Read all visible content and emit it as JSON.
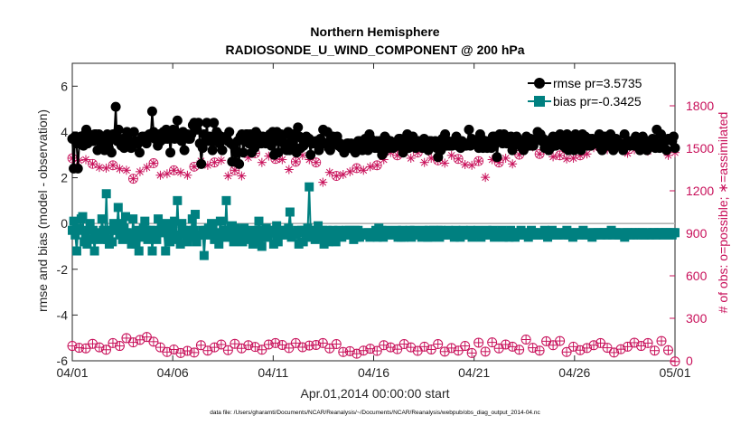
{
  "chart_data": {
    "type": "line",
    "title": "Northern Hemisphere",
    "subtitle": "RADIOSONDE_U_WIND_COMPONENT @ 200 hPa",
    "xlabel": "Apr.01,2014 00:00:00 start",
    "ylabel": "rmse and bias (model - observation)",
    "ylabel_right": "# of obs: o=possible; ∗=assimilated",
    "footnote": "data file: /Users/gharamti/Documents/NCAR/Reanalysis/~/Documents/NCAR/Reanalysis/webpub/obs_diag_output_2014-04.nc",
    "xlim": [
      0,
      30
    ],
    "ylim": [
      -6,
      7
    ],
    "ylim_right": [
      0,
      2100
    ],
    "x_ticks": [
      0,
      5,
      10,
      15,
      20,
      25,
      30
    ],
    "x_tick_labels": [
      "04/01",
      "04/06",
      "04/11",
      "04/16",
      "04/21",
      "04/26",
      "05/01"
    ],
    "y_ticks": [
      -6,
      -4,
      -2,
      0,
      2,
      4,
      6
    ],
    "y_ticks_right": [
      0,
      300,
      600,
      900,
      1200,
      1500,
      1800
    ],
    "zero_line": 0,
    "colors": {
      "rmse": "#000000",
      "bias": "#008080",
      "obs": "#c8105a",
      "zero": "#b3b3b3"
    },
    "legend": {
      "position": "top-right",
      "entries": [
        "rmse pr=3.5735",
        "bias pr=-0.3425"
      ]
    },
    "series": [
      {
        "name": "rmse pr=3.5735",
        "axis": "left",
        "values": [
          3.7,
          2.4,
          3.8,
          3.5,
          2.4,
          3.5,
          3.8,
          3.6,
          3.4,
          3.9,
          4.1,
          3.5,
          3.9,
          3.8,
          3.8,
          3.6,
          3.9,
          3.9,
          3.2,
          3.9,
          3.7,
          3.7,
          3.5,
          3.2,
          3.5,
          3.9,
          3.3,
          3.7,
          3.1,
          3.9,
          3.9,
          5.1,
          3.6,
          4.1,
          3.7,
          3.4,
          3.7,
          3.3,
          3.6,
          4.0,
          3.9,
          3.6,
          3.3,
          3.4,
          4.0,
          3.5,
          3.6,
          3.5,
          3.1,
          3.6,
          3.8,
          3.7,
          3.8,
          3.5,
          3.7,
          3.9,
          3.9,
          4.9,
          4.0,
          3.7,
          3.9,
          3.4,
          3.9,
          3.6,
          3.7,
          4.0,
          3.7,
          4.1,
          3.7,
          3.9,
          3.1,
          3.8,
          4.1,
          3.7,
          4.0,
          4.5,
          3.7,
          3.9,
          3.6,
          4.0,
          3.2,
          3.9,
          3.9,
          3.7,
          3.7,
          3.9,
          4.3,
          4.4,
          4.3,
          4.1,
          4.4,
          3.5,
          2.6,
          3.3,
          3.9,
          3.6,
          4.4,
          3.6,
          3.8,
          3.6,
          3.2,
          4.4,
          3.6,
          4.0,
          3.9,
          3.5,
          3.8,
          3.2,
          3.7,
          3.7,
          3.8,
          3.6,
          4.0,
          3.5,
          2.7,
          3.4,
          2.7,
          3.1,
          3.6,
          2.6,
          3.8,
          3.9,
          3.1,
          3.6,
          3.9,
          3.9,
          3.5,
          3.9,
          3.1,
          3.6,
          3.3,
          4.0,
          3.9,
          3.6,
          3.5,
          3.5,
          3.8,
          3.6,
          3.5,
          3.7,
          3.6,
          3.9,
          3.4,
          4.0,
          3.0,
          3.6,
          4.0,
          3.1,
          3.7,
          3.9,
          3.8,
          3.5,
          3.3,
          3.2,
          4.0,
          3.2,
          3.4,
          3.9,
          3.7,
          3.9,
          3.1,
          4.2,
          3.8,
          3.3,
          3.7,
          3.4,
          3.5,
          3.8,
          3.6,
          3.7,
          3.0,
          3.5,
          3.5,
          3.5,
          3.6,
          3.5,
          3.2,
          3.7,
          3.5,
          4.1,
          3.5,
          3.5,
          4.0,
          3.3,
          3.2,
          3.6,
          3.8,
          3.5,
          3.5,
          3.8,
          3.4,
          3.5,
          3.3,
          3.3,
          3.1,
          3.4,
          3.5,
          3.5,
          3.3,
          3.5,
          3.3,
          3.2,
          3.1,
          3.5,
          3.6,
          3.6,
          3.4,
          3.2,
          3.6,
          3.7,
          3.6,
          3.2,
          3.9,
          3.7,
          3.6,
          3.4,
          3.3,
          3.6,
          3.3,
          3.6,
          3.4,
          3.0,
          3.1,
          3.8,
          3.7,
          3.6,
          3.3,
          3.6,
          3.4,
          3.3,
          3.5,
          3.4,
          3.4,
          3.7,
          3.7,
          3.5,
          3.1,
          3.5,
          3.6,
          3.9,
          3.3,
          3.4,
          3.7,
          3.8,
          3.6,
          3.3,
          3.4,
          3.6,
          3.5,
          3.5,
          3.3,
          3.7,
          3.5,
          3.5,
          3.2,
          3.6,
          3.6,
          3.4,
          3.5,
          3.6,
          3.3,
          2.9,
          3.2,
          3.2,
          3.7,
          3.4,
          3.9,
          3.4,
          3.6,
          3.4,
          3.4,
          3.4,
          3.6,
          3.6,
          3.8,
          3.4,
          3.4,
          3.3,
          3.6,
          3.4,
          3.4,
          3.4,
          3.5,
          4.1,
          3.4,
          3.7,
          3.5,
          3.6,
          3.5,
          3.6,
          3.3,
          3.9,
          3.7,
          3.3,
          3.4,
          3.6,
          3.3,
          3.5,
          3.4,
          3.3,
          3.8,
          3.8,
          3.5,
          2.9,
          3.6,
          3.9,
          3.6,
          3.5,
          3.9,
          3.6,
          3.5,
          3.5,
          3.6,
          3.8,
          3.2,
          3.4,
          3.5,
          3.8,
          3.5,
          3.6,
          3.6,
          3.3,
          3.2,
          3.6,
          3.8,
          3.7,
          3.4,
          3.7,
          3.4,
          3.4,
          3.6,
          3.7,
          4.0,
          3.9,
          3.9,
          3.6,
          3.7,
          3.3,
          3.6,
          3.4,
          3.2,
          3.3,
          3.7,
          3.8,
          3.4,
          3.4,
          3.6,
          3.5,
          3.9,
          3.6,
          3.4,
          3.5,
          3.3,
          3.9,
          3.2,
          3.8,
          3.8,
          3.4,
          3.2,
          3.9,
          3.7,
          3.5,
          3.4,
          3.2,
          3.9,
          3.6,
          3.8,
          3.7,
          3.4,
          3.7,
          3.4,
          3.7,
          3.5,
          3.5,
          3.5,
          3.5,
          3.9,
          3.3,
          3.2,
          3.6,
          3.8,
          3.7,
          3.4,
          3.4,
          3.9,
          3.7,
          3.2,
          3.4,
          3.7,
          3.6,
          3.4,
          3.5,
          3.4,
          3.2,
          3.9,
          3.4,
          3.5,
          3.6,
          3.4,
          3.6,
          3.5,
          3.4,
          3.8,
          3.7,
          3.6,
          3.2,
          3.5,
          3.8,
          3.6,
          3.4,
          3.2,
          3.6,
          3.5,
          3.4,
          3.7,
          3.5,
          3.3,
          4.1,
          3.5,
          3.3,
          3.9,
          3.5,
          3.5,
          3.6,
          3.2,
          3.7,
          3.7,
          3.7,
          3.6,
          3.8,
          3.3
        ]
      },
      {
        "name": "bias pr=-0.3425",
        "axis": "left",
        "values": [
          -0.3,
          0.1,
          -0.5,
          -1.2,
          -0.2,
          -0.3,
          0.2,
          0.3,
          -0.8,
          -0.5,
          -0.9,
          -0.3,
          0.0,
          -0.7,
          -0.3,
          -1.2,
          -0.4,
          -0.6,
          -0.5,
          -0.7,
          0.2,
          -0.3,
          -0.6,
          1.3,
          -0.7,
          -0.9,
          -0.3,
          -0.8,
          0.0,
          -0.1,
          -0.3,
          0.7,
          -0.5,
          0.0,
          -0.7,
          -0.2,
          0.3,
          -0.4,
          -0.5,
          -0.6,
          -0.9,
          0.2,
          -0.5,
          -0.9,
          -0.3,
          -1.2,
          -0.5,
          -0.6,
          -0.2,
          0.1,
          -0.3,
          -0.7,
          -0.4,
          -0.3,
          -1.2,
          -0.3,
          -0.4,
          -0.7,
          0.2,
          -0.4,
          -0.3,
          -0.1,
          -0.4,
          -1.2,
          0.0,
          -0.6,
          -0.8,
          -0.2,
          -0.4,
          0.1,
          -0.7,
          1.0,
          -0.5,
          -0.9,
          0.0,
          -0.3,
          -0.5,
          -0.6,
          -0.8,
          -0.3,
          -0.6,
          0.2,
          -0.3,
          0.4,
          -0.8,
          -0.5,
          -0.5,
          -0.5,
          -0.3,
          -1.4,
          -0.3,
          -0.5,
          -0.2,
          -0.5,
          0.0,
          -0.2,
          -0.7,
          -0.5,
          -0.4,
          -0.9,
          0.1,
          -0.5,
          -0.3,
          -0.6,
          1.0,
          -0.6,
          -0.5,
          -0.3,
          -0.1,
          -0.8,
          -0.2,
          -0.7,
          -0.4,
          -0.3,
          -0.4,
          -0.8,
          -0.2,
          -0.3,
          -0.5,
          -0.7,
          -0.5,
          -0.4,
          -0.9,
          -0.3,
          -0.8,
          -0.6,
          0.1,
          -0.3,
          -1.0,
          -0.4,
          -0.6,
          -0.2,
          -0.6,
          -0.4,
          -0.4,
          -0.3,
          -0.9,
          -0.3,
          -0.1,
          -0.8,
          -0.5,
          -0.3,
          -0.3,
          -0.5,
          -0.5,
          -0.4,
          -0.2,
          0.5,
          -0.6,
          -0.4,
          -0.5,
          -0.5,
          -0.3,
          -0.9,
          -0.4,
          -0.3,
          -0.8,
          -0.3,
          -0.6,
          -0.2,
          1.6,
          -0.5,
          -0.6,
          -0.4,
          -0.7,
          -0.3,
          -0.1,
          -0.6,
          -0.4,
          -0.3,
          -0.9,
          -0.5,
          -0.3,
          -0.8,
          -0.6,
          -0.7,
          -0.3,
          -0.5,
          -0.8,
          -0.5,
          -0.3,
          -0.4,
          -0.6,
          -0.5,
          -0.5,
          -0.3,
          -0.5,
          -0.3,
          -0.5,
          -0.4,
          -0.7,
          -0.3,
          -0.6,
          -0.3,
          -0.6,
          -0.5,
          -0.4,
          -0.5,
          -0.5,
          -0.5,
          -0.4,
          -0.6,
          -0.4,
          -0.5,
          -0.5,
          -0.3,
          -0.6,
          -0.2,
          -0.4,
          -0.3,
          -0.6,
          -0.5,
          -0.4,
          -0.3,
          -0.4,
          -0.5,
          -0.4,
          -0.5,
          -0.4,
          -0.3,
          -0.6,
          -0.4,
          -0.6,
          -0.3,
          -0.6,
          -0.5,
          -0.5,
          -0.4,
          -0.3,
          -0.6,
          -0.4,
          -0.3,
          -0.5,
          -0.5,
          -0.5,
          -0.4,
          -0.6,
          -0.3,
          -0.5,
          -0.4,
          -0.6,
          -0.3,
          -0.6,
          -0.5,
          -0.3,
          -0.5,
          -0.4,
          -0.3,
          -0.6,
          -0.3,
          -0.5,
          -0.5,
          -0.5,
          -0.4,
          -0.3,
          -0.4,
          -0.5,
          -0.4,
          -0.6,
          -0.3,
          -0.5,
          -0.4,
          -0.6,
          -0.5,
          -0.3,
          -0.5,
          -0.5,
          -0.4,
          -0.5,
          -0.3,
          -0.6,
          -0.4,
          -0.4,
          -0.5,
          -0.3,
          -0.4,
          -0.6,
          -0.5,
          -0.5,
          -0.4,
          -0.3,
          -0.5,
          -0.5,
          -0.4,
          -0.3,
          -0.6,
          -0.4,
          -0.5,
          -0.5,
          -0.4,
          -0.3,
          -0.6,
          -0.4,
          -0.4,
          -0.5,
          -0.6,
          -0.3,
          -0.4,
          -0.4,
          -0.6,
          -0.5,
          -0.4,
          -0.5,
          -0.3,
          -0.5,
          -0.5,
          -0.4,
          -0.5,
          -0.6,
          -0.4,
          -0.3,
          -0.5,
          -0.4,
          -0.5,
          -0.5,
          -0.4,
          -0.4,
          -0.5,
          -0.5,
          -0.3,
          -0.4,
          -0.6,
          -0.5,
          -0.4,
          -0.3,
          -0.5,
          -0.4,
          -0.5,
          -0.5,
          -0.4,
          -0.4,
          -0.5,
          -0.5,
          -0.4,
          -0.3,
          -0.5,
          -0.5,
          -0.4,
          -0.6,
          -0.5,
          -0.4,
          -0.4,
          -0.5,
          -0.5,
          -0.4,
          -0.3,
          -0.5,
          -0.5,
          -0.4,
          -0.5,
          -0.5,
          -0.6,
          -0.4,
          -0.5,
          -0.4,
          -0.4,
          -0.5,
          -0.5,
          -0.4,
          -0.4,
          -0.4,
          -0.5,
          -0.5,
          -0.4,
          -0.3,
          -0.5,
          -0.4,
          -0.4,
          -0.5,
          -0.5,
          -0.4,
          -0.5,
          -0.4,
          -0.6,
          -0.5,
          -0.4,
          -0.4,
          -0.5,
          -0.4,
          -0.5,
          -0.4,
          -0.5,
          -0.4,
          -0.4,
          -0.5,
          -0.4,
          -0.5,
          -0.5,
          -0.4,
          -0.4,
          -0.5,
          -0.5,
          -0.4,
          -0.4,
          -0.5,
          -0.4,
          -0.4,
          -0.5,
          -0.4,
          -0.5,
          -0.4,
          -0.4,
          -0.4,
          -0.5,
          -0.4,
          -0.5,
          -0.4,
          -0.4
        ]
      },
      {
        "name": "obs possible (o)",
        "axis": "right",
        "values": [
          105,
          92,
          88,
          120,
          95,
          78,
          125,
          105,
          160,
          130,
          148,
          168,
          135,
          95,
          62,
          80,
          55,
          70,
          58,
          110,
          72,
          95,
          115,
          75,
          120,
          88,
          110,
          98,
          78,
          115,
          125,
          112,
          90,
          125,
          96,
          108,
          112,
          125,
          88,
          118,
          62,
          68,
          50,
          72,
          85,
          70,
          110,
          95,
          82,
          118,
          95,
          70,
          100,
          80,
          118,
          65,
          90,
          72,
          105,
          55,
          128,
          65,
          130,
          88,
          115,
          100,
          78,
          150,
          92,
          72,
          138,
          110,
          140,
          62,
          100,
          75,
          90,
          110,
          125,
          92,
          58,
          82,
          100,
          128,
          105,
          125,
          72,
          140,
          75,
          -5
        ]
      },
      {
        "name": "obs assimilated (∗)",
        "axis": "right",
        "values": [
          1430,
          1415,
          1420,
          1390,
          1365,
          1360,
          1380,
          1355,
          1345,
          1285,
          1335,
          1365,
          1395,
          1310,
          1320,
          1345,
          1330,
          1310,
          1370,
          1410,
          1380,
          1400,
          1415,
          1305,
          1345,
          1305,
          1435,
          1465,
          1400,
          1445,
          1425,
          1420,
          1350,
          1405,
          1450,
          1420,
          1400,
          1260,
          1330,
          1305,
          1315,
          1335,
          1360,
          1345,
          1370,
          1380,
          1420,
          1470,
          1450,
          1495,
          1430,
          1470,
          1400,
          1430,
          1415,
          1395,
          1450,
          1425,
          1385,
          1380,
          1410,
          1295,
          1420,
          1400,
          1430,
          1390,
          1455,
          1525,
          1510,
          1460,
          1485,
          1440,
          1450,
          1425,
          1430,
          1450,
          1460,
          1505,
          1520,
          1490,
          1530,
          1545,
          1465,
          1490,
          1510,
          1480,
          1500,
          1515,
          1450,
          1470
        ]
      }
    ]
  }
}
